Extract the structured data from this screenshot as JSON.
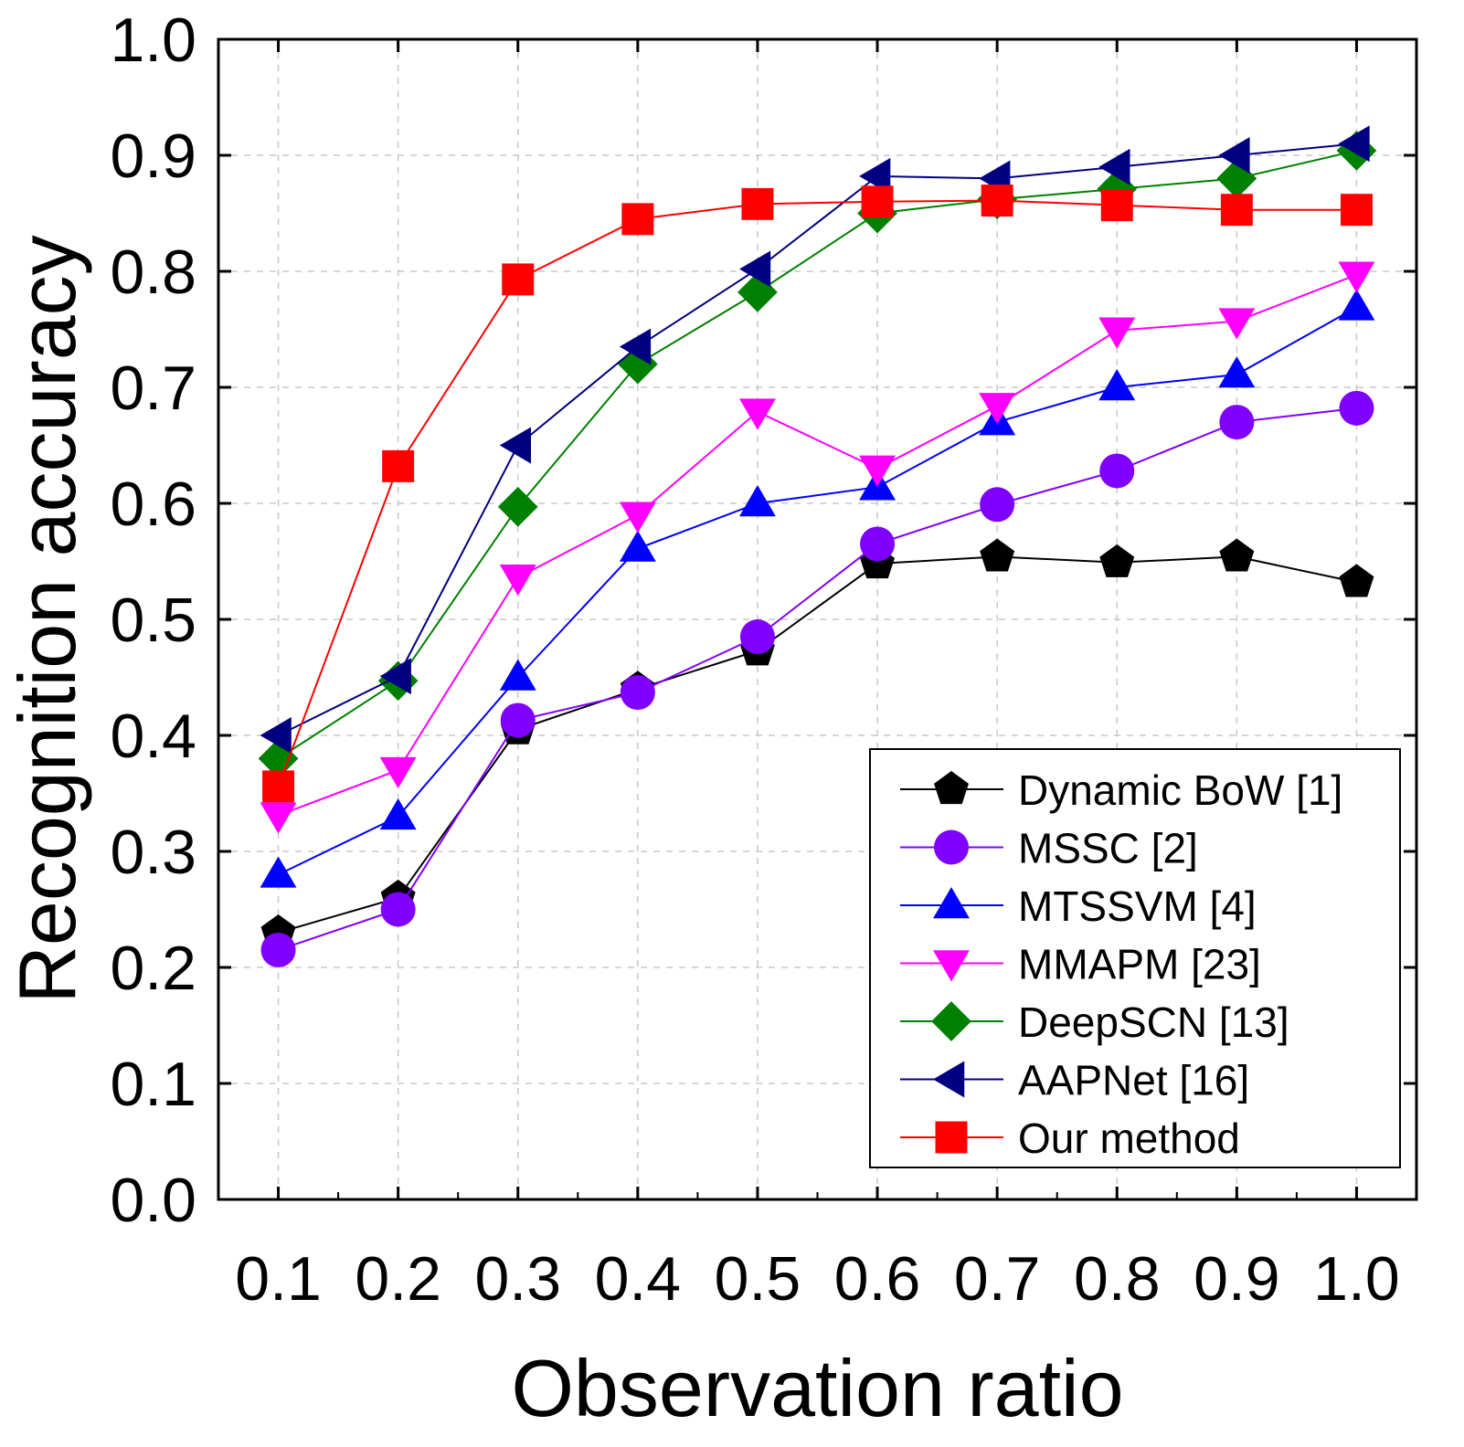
{
  "chart_data": {
    "type": "line",
    "title": "",
    "xlabel": "Observation ratio",
    "ylabel": "Recognition accuracy",
    "x": [
      0.1,
      0.2,
      0.3,
      0.4,
      0.5,
      0.6,
      0.7,
      0.8,
      0.9,
      1.0
    ],
    "x_tick_labels": [
      "0.1",
      "0.2",
      "0.3",
      "0.4",
      "0.5",
      "0.6",
      "0.7",
      "0.8",
      "0.9",
      "1.0"
    ],
    "y_tick_labels": [
      "0.0",
      "0.1",
      "0.2",
      "0.3",
      "0.4",
      "0.5",
      "0.6",
      "0.7",
      "0.8",
      "0.9",
      "1.0"
    ],
    "y_ticks": [
      0.0,
      0.1,
      0.2,
      0.3,
      0.4,
      0.5,
      0.6,
      0.7,
      0.8,
      0.9,
      1.0
    ],
    "xlim": [
      0.05,
      1.05
    ],
    "ylim": [
      0.0,
      1.0
    ],
    "grid": true,
    "legend_position": "bottom-right",
    "series": [
      {
        "name": "Dynamic BoW [1]",
        "marker": "pentagon",
        "color": "#000000",
        "values": [
          0.23,
          0.26,
          0.405,
          0.44,
          0.473,
          0.548,
          0.554,
          0.549,
          0.554,
          0.532
        ]
      },
      {
        "name": "MSSC [2]",
        "marker": "circle",
        "color": "#8000ff",
        "values": [
          0.215,
          0.25,
          0.413,
          0.437,
          0.485,
          0.565,
          0.599,
          0.628,
          0.67,
          0.682
        ]
      },
      {
        "name": "MTSSVM [4]",
        "marker": "triangle-up",
        "color": "#0000ff",
        "values": [
          0.28,
          0.33,
          0.45,
          0.561,
          0.6,
          0.614,
          0.67,
          0.7,
          0.711,
          0.769
        ]
      },
      {
        "name": "MMAPM [23]",
        "marker": "triangle-down",
        "color": "#ff00ff",
        "values": [
          0.331,
          0.37,
          0.536,
          0.59,
          0.679,
          0.63,
          0.684,
          0.749,
          0.757,
          0.797
        ]
      },
      {
        "name": "DeepSCN [13]",
        "marker": "diamond",
        "color": "#008000",
        "values": [
          0.38,
          0.447,
          0.597,
          0.72,
          0.782,
          0.85,
          0.862,
          0.871,
          0.88,
          0.904
        ]
      },
      {
        "name": "AAPNet [16]",
        "marker": "triangle-left",
        "color": "#000080",
        "values": [
          0.4,
          0.451,
          0.65,
          0.735,
          0.802,
          0.882,
          0.88,
          0.89,
          0.9,
          0.91
        ]
      },
      {
        "name": "Our method",
        "marker": "square",
        "color": "#ff0000",
        "values": [
          0.356,
          0.632,
          0.793,
          0.845,
          0.858,
          0.86,
          0.861,
          0.857,
          0.853,
          0.853
        ]
      }
    ]
  }
}
